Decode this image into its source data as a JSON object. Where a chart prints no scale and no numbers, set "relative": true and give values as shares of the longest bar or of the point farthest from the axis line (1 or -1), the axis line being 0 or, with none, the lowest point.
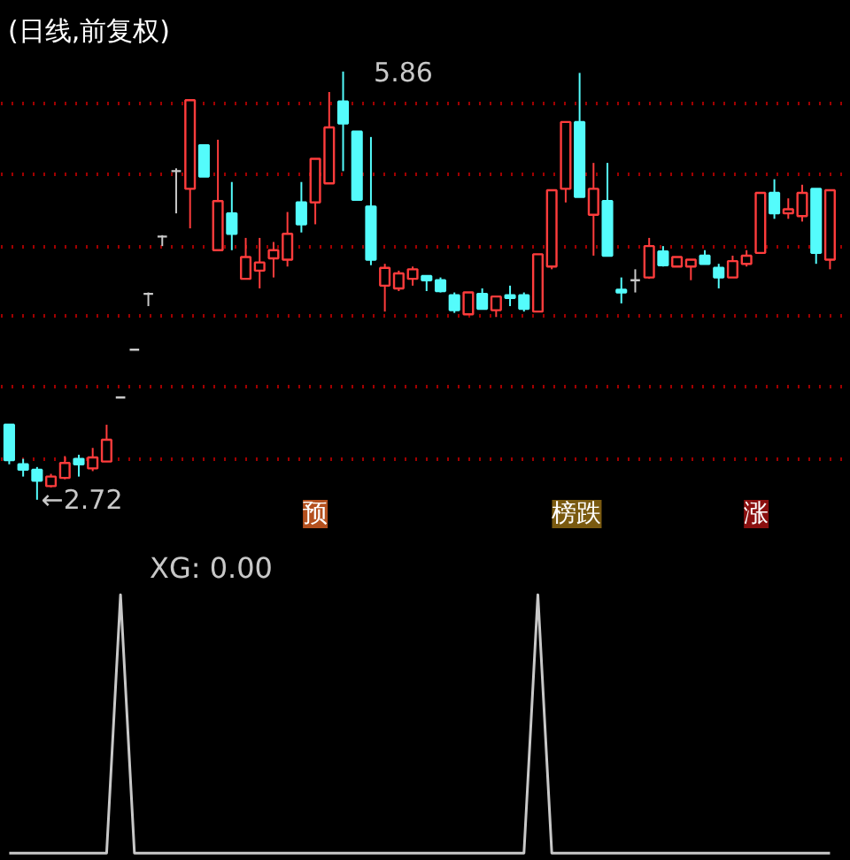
{
  "chart_data": [
    {
      "type": "candlestick",
      "title": "(日线,前复权)",
      "categories": [
        null,
        null,
        null,
        null,
        null,
        null,
        null,
        null,
        null,
        null,
        null,
        null,
        null,
        null,
        null,
        null,
        null,
        null,
        null,
        null,
        null,
        null,
        null,
        null,
        null,
        null,
        null,
        null,
        null,
        null,
        null,
        null,
        null,
        null,
        null,
        null,
        null,
        null,
        null,
        null,
        null,
        null,
        null,
        null,
        null,
        null,
        null,
        null,
        null,
        null,
        null,
        null,
        null,
        null,
        null,
        null,
        null,
        null,
        null,
        null
      ],
      "ohlc": [
        [
          3.27,
          3.27,
          2.98,
          3.01
        ],
        [
          2.98,
          3.02,
          2.89,
          2.94
        ],
        [
          2.94,
          2.96,
          2.72,
          2.86
        ],
        [
          2.82,
          2.91,
          2.81,
          2.89
        ],
        [
          2.88,
          3.04,
          2.87,
          2.99
        ],
        [
          3.02,
          3.05,
          2.89,
          2.98
        ],
        [
          2.95,
          3.1,
          2.93,
          3.03
        ],
        [
          3.0,
          3.27,
          3.0,
          3.16
        ],
        [
          3.47,
          3.47,
          3.47,
          3.47
        ],
        [
          3.82,
          3.82,
          3.82,
          3.82
        ],
        [
          4.23,
          4.24,
          4.14,
          4.23
        ],
        [
          4.65,
          4.66,
          4.58,
          4.65
        ],
        [
          5.13,
          5.15,
          4.82,
          5.13
        ],
        [
          5.0,
          5.65,
          4.71,
          5.65
        ],
        [
          5.32,
          5.32,
          5.09,
          5.09
        ],
        [
          4.55,
          5.36,
          4.55,
          4.91
        ],
        [
          4.82,
          5.05,
          4.55,
          4.67
        ],
        [
          4.34,
          4.64,
          4.34,
          4.5
        ],
        [
          4.4,
          4.64,
          4.27,
          4.46
        ],
        [
          4.49,
          4.61,
          4.35,
          4.55
        ],
        [
          4.48,
          4.83,
          4.43,
          4.67
        ],
        [
          4.9,
          5.05,
          4.68,
          4.74
        ],
        [
          4.9,
          5.22,
          4.74,
          5.22
        ],
        [
          5.04,
          5.71,
          5.04,
          5.45
        ],
        [
          5.64,
          5.86,
          5.13,
          5.48
        ],
        [
          5.42,
          5.42,
          4.92,
          4.92
        ],
        [
          4.87,
          5.38,
          4.44,
          4.48
        ],
        [
          4.29,
          4.45,
          4.1,
          4.42
        ],
        [
          4.27,
          4.4,
          4.25,
          4.38
        ],
        [
          4.34,
          4.43,
          4.29,
          4.41
        ],
        [
          4.36,
          4.36,
          4.25,
          4.33
        ],
        [
          4.33,
          4.35,
          4.24,
          4.25
        ],
        [
          4.22,
          4.24,
          4.09,
          4.11
        ],
        [
          4.08,
          4.24,
          4.08,
          4.24
        ],
        [
          4.23,
          4.27,
          4.12,
          4.12
        ],
        [
          4.11,
          4.21,
          4.06,
          4.21
        ],
        [
          4.22,
          4.29,
          4.14,
          4.2
        ],
        [
          4.22,
          4.24,
          4.1,
          4.12
        ],
        [
          4.1,
          4.52,
          4.1,
          4.52
        ],
        [
          4.43,
          4.99,
          4.41,
          4.99
        ],
        [
          5.0,
          5.49,
          4.9,
          5.49
        ],
        [
          5.49,
          5.85,
          4.94,
          4.94
        ],
        [
          4.81,
          5.19,
          4.51,
          5.0
        ],
        [
          4.91,
          5.19,
          4.51,
          4.51
        ],
        [
          4.26,
          4.35,
          4.16,
          4.24
        ],
        [
          4.33,
          4.41,
          4.24,
          4.33
        ],
        [
          4.35,
          4.64,
          4.34,
          4.58
        ],
        [
          4.54,
          4.58,
          4.43,
          4.44
        ],
        [
          4.43,
          4.5,
          4.43,
          4.5
        ],
        [
          4.43,
          4.48,
          4.33,
          4.48
        ],
        [
          4.51,
          4.55,
          4.45,
          4.45
        ],
        [
          4.42,
          4.45,
          4.27,
          4.35
        ],
        [
          4.35,
          4.51,
          4.35,
          4.47
        ],
        [
          4.45,
          4.55,
          4.43,
          4.51
        ],
        [
          4.53,
          4.97,
          4.53,
          4.97
        ],
        [
          4.97,
          5.07,
          4.78,
          4.82
        ],
        [
          4.82,
          4.93,
          4.78,
          4.85
        ],
        [
          4.8,
          5.03,
          4.76,
          4.97
        ],
        [
          5.0,
          5.0,
          4.45,
          4.53
        ],
        [
          4.48,
          4.99,
          4.41,
          4.99
        ]
      ],
      "colors": [
        "#54fcfc",
        "#54fcfc",
        "#54fcfc",
        "#ff3c3c",
        "#ff3c3c",
        "#54fcfc",
        "#ff3c3c",
        "#ff3c3c",
        "#c8c8c8",
        "#c8c8c8",
        "#c8c8c8",
        "#c8c8c8",
        "#c8c8c8",
        "#ff3c3c",
        "#54fcfc",
        "#ff3c3c",
        "#54fcfc",
        "#ff3c3c",
        "#ff3c3c",
        "#ff3c3c",
        "#ff3c3c",
        "#54fcfc",
        "#ff3c3c",
        "#ff3c3c",
        "#54fcfc",
        "#54fcfc",
        "#54fcfc",
        "#ff3c3c",
        "#ff3c3c",
        "#ff3c3c",
        "#54fcfc",
        "#54fcfc",
        "#54fcfc",
        "#ff3c3c",
        "#54fcfc",
        "#ff3c3c",
        "#54fcfc",
        "#54fcfc",
        "#ff3c3c",
        "#ff3c3c",
        "#ff3c3c",
        "#54fcfc",
        "#ff3c3c",
        "#54fcfc",
        "#54fcfc",
        "#c8c8c8",
        "#ff3c3c",
        "#54fcfc",
        "#ff3c3c",
        "#ff3c3c",
        "#54fcfc",
        "#54fcfc",
        "#ff3c3c",
        "#ff3c3c",
        "#ff3c3c",
        "#54fcfc",
        "#ff3c3c",
        "#ff3c3c",
        "#54fcfc",
        "#ff3c3c"
      ],
      "yticks": [
        {
          "value": 5.62,
          "label": null
        },
        {
          "value": 5.1,
          "label": null
        },
        {
          "value": 4.58,
          "label": null
        },
        {
          "value": 4.07,
          "label": null
        },
        {
          "value": 3.55,
          "label": null
        },
        {
          "value": 3.02,
          "label": null
        }
      ],
      "grid": "y",
      "tick_labels": false,
      "annotations": [
        "5.86",
        "←2.72",
        "预",
        "榜跌",
        "涨"
      ]
    },
    {
      "type": "line",
      "title": "XG: 0.00",
      "relative": true,
      "tick_labels": false,
      "categories": [
        null,
        null,
        null,
        null,
        null,
        null,
        null,
        null,
        null,
        null,
        null,
        null,
        null,
        null,
        null,
        null,
        null,
        null,
        null,
        null,
        null,
        null,
        null,
        null,
        null,
        null,
        null,
        null,
        null,
        null,
        null,
        null,
        null,
        null,
        null,
        null,
        null,
        null,
        null,
        null,
        null,
        null,
        null,
        null,
        null,
        null,
        null,
        null,
        null,
        null,
        null,
        null,
        null,
        null,
        null,
        null,
        null,
        null,
        null,
        null
      ],
      "series": [
        {
          "color": "#c8c8c8",
          "values": [
            0,
            0,
            0,
            0,
            0,
            0,
            0,
            0,
            1,
            0,
            0,
            0,
            0,
            0,
            0,
            0,
            0,
            0,
            0,
            0,
            0,
            0,
            0,
            0,
            0,
            0,
            0,
            0,
            0,
            0,
            0,
            0,
            0,
            0,
            0,
            0,
            0,
            0,
            1,
            0,
            0,
            0,
            0,
            0,
            0,
            0,
            0,
            0,
            0,
            0,
            0,
            0,
            0,
            0,
            0,
            0,
            0,
            0,
            0,
            0
          ]
        }
      ]
    }
  ]
}
